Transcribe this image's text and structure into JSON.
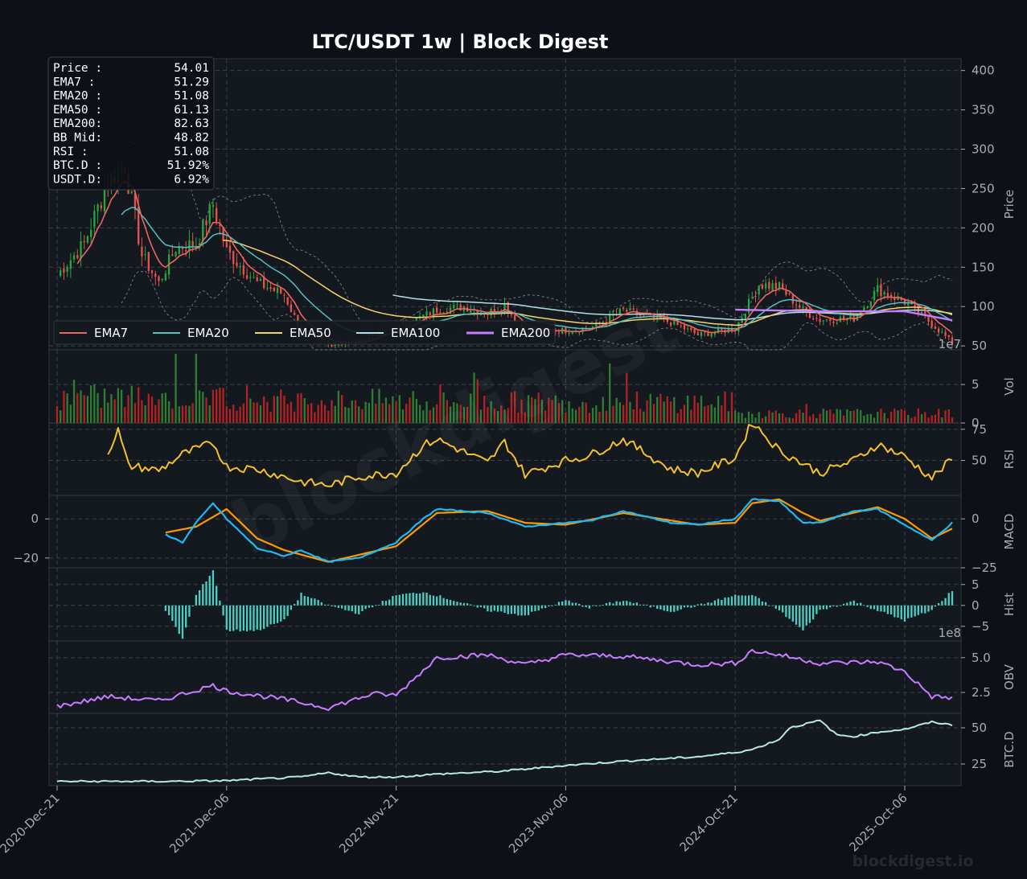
{
  "chart_data": {
    "type": "line",
    "title": "LTC/USDT  1w  |  Block Digest",
    "watermark": "blockdigest",
    "footer_watermark": "blockdigest.io",
    "x_ticks": [
      "2020-Dec-21",
      "2021-Dec-06",
      "2022-Nov-21",
      "2023-Nov-06",
      "2024-Oct-21",
      "2025-Oct-06"
    ],
    "x_range": [
      "2020-Dec-21",
      "2026-Jan-12"
    ],
    "info_box": [
      {
        "label": "Price :",
        "value": "54.01"
      },
      {
        "label": "EMA7  :",
        "value": "51.29"
      },
      {
        "label": "EMA20 :",
        "value": "51.08"
      },
      {
        "label": "EMA50 :",
        "value": "61.13"
      },
      {
        "label": "EMA200:",
        "value": "82.63"
      },
      {
        "label": "BB Mid:",
        "value": "48.82"
      },
      {
        "label": "RSI   :",
        "value": "51.08"
      },
      {
        "label": "BTC.D :",
        "value": "51.92%"
      },
      {
        "label": "USDT.D:",
        "value": "6.92%"
      }
    ],
    "legend": [
      {
        "name": "EMA7",
        "color": "#ef6461"
      },
      {
        "name": "EMA20",
        "color": "#53c1bd"
      },
      {
        "name": "EMA50",
        "color": "#f4d46b"
      },
      {
        "name": "EMA100",
        "color": "#b2dfe6"
      },
      {
        "name": "EMA200",
        "color": "#c77dff"
      }
    ],
    "panels": [
      {
        "id": "price",
        "ylabel": "Price",
        "ticks": [
          "400",
          "350",
          "300",
          "250",
          "200",
          "150",
          "100",
          "50"
        ],
        "ylim": [
          45,
          415
        ],
        "price_series": [
          {
            "date": "2020-Dec-21",
            "close": 140
          },
          {
            "date": "2021-Feb-15",
            "close": 180
          },
          {
            "date": "2021-Apr-05",
            "close": 260
          },
          {
            "date": "2021-May-10",
            "close": 280
          },
          {
            "date": "2021-Jun-14",
            "close": 165
          },
          {
            "date": "2021-Jul-19",
            "close": 130
          },
          {
            "date": "2021-Aug-23",
            "close": 175
          },
          {
            "date": "2021-Oct-04",
            "close": 180
          },
          {
            "date": "2021-Nov-08",
            "close": 230
          },
          {
            "date": "2021-Dec-06",
            "close": 170
          },
          {
            "date": "2022-Feb-07",
            "close": 130
          },
          {
            "date": "2022-Apr-04",
            "close": 115
          },
          {
            "date": "2022-May-09",
            "close": 68
          },
          {
            "date": "2022-Jul-04",
            "close": 52
          },
          {
            "date": "2022-Sep-05",
            "close": 55
          },
          {
            "date": "2022-Nov-21",
            "close": 72
          },
          {
            "date": "2023-Jan-16",
            "close": 88
          },
          {
            "date": "2023-Feb-13",
            "close": 96
          },
          {
            "date": "2023-Apr-10",
            "close": 100
          },
          {
            "date": "2023-May-29",
            "close": 92
          },
          {
            "date": "2023-Jul-03",
            "close": 102
          },
          {
            "date": "2023-Aug-14",
            "close": 68
          },
          {
            "date": "2023-Nov-06",
            "close": 70
          },
          {
            "date": "2023-Dec-25",
            "close": 72
          },
          {
            "date": "2024-Mar-04",
            "close": 95
          },
          {
            "date": "2024-Jun-10",
            "close": 80
          },
          {
            "date": "2024-Aug-05",
            "close": 64
          },
          {
            "date": "2024-Oct-21",
            "close": 72
          },
          {
            "date": "2024-Dec-09",
            "close": 128
          },
          {
            "date": "2025-Jan-20",
            "close": 125
          },
          {
            "date": "2025-Mar-10",
            "close": 95
          },
          {
            "date": "2025-Apr-14",
            "close": 83
          },
          {
            "date": "2025-Jun-23",
            "close": 85
          },
          {
            "date": "2025-Aug-11",
            "close": 122
          },
          {
            "date": "2025-Oct-06",
            "close": 106
          },
          {
            "date": "2025-Nov-03",
            "close": 92
          },
          {
            "date": "2025-Dec-01",
            "close": 78
          },
          {
            "date": "2026-Jan-12",
            "close": 54
          }
        ],
        "ema200": [
          {
            "date": "2024-Oct-21",
            "value": 96
          },
          {
            "date": "2025-Apr-14",
            "value": 94
          },
          {
            "date": "2025-Oct-06",
            "value": 94
          },
          {
            "date": "2026-Jan-12",
            "value": 82.63
          }
        ]
      },
      {
        "id": "vol",
        "ylabel": "Vol",
        "ticks": [
          "5",
          "0"
        ],
        "exponent": "1e7",
        "ylim": [
          0,
          9.5
        ]
      },
      {
        "id": "rsi",
        "ylabel": "RSI",
        "ticks": [
          "75",
          "50"
        ],
        "ylim": [
          22,
          80
        ],
        "series": [
          {
            "date": "2021-Apr-05",
            "value": 57
          },
          {
            "date": "2021-Apr-26",
            "value": 74
          },
          {
            "date": "2021-May-17",
            "value": 46
          },
          {
            "date": "2021-Jul-19",
            "value": 42
          },
          {
            "date": "2021-Sep-06",
            "value": 55
          },
          {
            "date": "2021-Nov-08",
            "value": 64
          },
          {
            "date": "2021-Dec-06",
            "value": 45
          },
          {
            "date": "2022-Feb-07",
            "value": 43
          },
          {
            "date": "2022-May-09",
            "value": 33
          },
          {
            "date": "2022-Jul-04",
            "value": 30
          },
          {
            "date": "2022-Sep-05",
            "value": 37
          },
          {
            "date": "2022-Nov-21",
            "value": 40
          },
          {
            "date": "2023-Jan-16",
            "value": 62
          },
          {
            "date": "2023-Feb-13",
            "value": 67
          },
          {
            "date": "2023-May-29",
            "value": 48
          },
          {
            "date": "2023-Jul-03",
            "value": 65
          },
          {
            "date": "2023-Aug-14",
            "value": 39
          },
          {
            "date": "2023-Nov-06",
            "value": 50
          },
          {
            "date": "2023-Dec-25",
            "value": 54
          },
          {
            "date": "2024-Mar-04",
            "value": 67
          },
          {
            "date": "2024-Jun-10",
            "value": 43
          },
          {
            "date": "2024-Aug-05",
            "value": 40
          },
          {
            "date": "2024-Oct-21",
            "value": 52
          },
          {
            "date": "2024-Nov-25",
            "value": 81
          },
          {
            "date": "2025-Jan-20",
            "value": 58
          },
          {
            "date": "2025-Apr-14",
            "value": 40
          },
          {
            "date": "2025-Jun-23",
            "value": 50
          },
          {
            "date": "2025-Aug-11",
            "value": 63
          },
          {
            "date": "2025-Oct-06",
            "value": 53
          },
          {
            "date": "2025-Dec-01",
            "value": 36
          },
          {
            "date": "2026-Jan-12",
            "value": 51.08
          }
        ]
      },
      {
        "id": "macd",
        "ylabel": "MACD",
        "ticks_left": [
          "0",
          "−20"
        ],
        "ticks_right": [
          "0",
          "−25"
        ],
        "ylim": [
          -25,
          12
        ],
        "macd": [
          {
            "date": "2021-Aug-02",
            "value": -8
          },
          {
            "date": "2021-Sep-06",
            "value": -12
          },
          {
            "date": "2021-Oct-04",
            "value": -2
          },
          {
            "date": "2021-Nov-08",
            "value": 8
          },
          {
            "date": "2021-Dec-06",
            "value": 0
          },
          {
            "date": "2022-Feb-07",
            "value": -15
          },
          {
            "date": "2022-Apr-04",
            "value": -19
          },
          {
            "date": "2022-May-09",
            "value": -16
          },
          {
            "date": "2022-Jul-04",
            "value": -22
          },
          {
            "date": "2022-Sep-05",
            "value": -20
          },
          {
            "date": "2022-Nov-21",
            "value": -12
          },
          {
            "date": "2023-Jan-16",
            "value": 0
          },
          {
            "date": "2023-Feb-13",
            "value": 5
          },
          {
            "date": "2023-May-29",
            "value": 3
          },
          {
            "date": "2023-Aug-14",
            "value": -4
          },
          {
            "date": "2023-Nov-06",
            "value": -2
          },
          {
            "date": "2023-Dec-25",
            "value": -1
          },
          {
            "date": "2024-Mar-04",
            "value": 4
          },
          {
            "date": "2024-Jun-10",
            "value": -2
          },
          {
            "date": "2024-Aug-05",
            "value": -3
          },
          {
            "date": "2024-Oct-21",
            "value": 0
          },
          {
            "date": "2024-Nov-25",
            "value": 10
          },
          {
            "date": "2025-Jan-20",
            "value": 9
          },
          {
            "date": "2025-Mar-10",
            "value": -2
          },
          {
            "date": "2025-Apr-14",
            "value": -2
          },
          {
            "date": "2025-Jun-23",
            "value": 4
          },
          {
            "date": "2025-Aug-11",
            "value": 5
          },
          {
            "date": "2025-Oct-06",
            "value": -3
          },
          {
            "date": "2025-Dec-01",
            "value": -11
          },
          {
            "date": "2026-Jan-12",
            "value": -2
          }
        ],
        "signal": [
          {
            "date": "2021-Aug-02",
            "value": -7
          },
          {
            "date": "2021-Oct-04",
            "value": -4
          },
          {
            "date": "2021-Dec-06",
            "value": 5
          },
          {
            "date": "2022-Feb-07",
            "value": -10
          },
          {
            "date": "2022-Apr-04",
            "value": -16
          },
          {
            "date": "2022-Jul-04",
            "value": -22
          },
          {
            "date": "2022-Nov-21",
            "value": -14
          },
          {
            "date": "2023-Feb-13",
            "value": 3
          },
          {
            "date": "2023-May-29",
            "value": 4
          },
          {
            "date": "2023-Aug-14",
            "value": -2
          },
          {
            "date": "2023-Nov-06",
            "value": -3
          },
          {
            "date": "2024-Mar-04",
            "value": 3
          },
          {
            "date": "2024-Aug-05",
            "value": -3
          },
          {
            "date": "2024-Oct-21",
            "value": -2
          },
          {
            "date": "2024-Nov-25",
            "value": 8
          },
          {
            "date": "2025-Jan-20",
            "value": 10
          },
          {
            "date": "2025-Mar-10",
            "value": 3
          },
          {
            "date": "2025-Apr-14",
            "value": -1
          },
          {
            "date": "2025-Aug-11",
            "value": 6
          },
          {
            "date": "2025-Oct-06",
            "value": 0
          },
          {
            "date": "2025-Dec-01",
            "value": -10
          },
          {
            "date": "2026-Jan-12",
            "value": -5
          }
        ]
      },
      {
        "id": "hist",
        "ylabel": "Hist",
        "ticks": [
          "5",
          "0",
          "−5"
        ],
        "ylim": [
          -8.5,
          9
        ]
      },
      {
        "id": "obv",
        "ylabel": "OBV",
        "ticks": [
          "5.0",
          "2.5"
        ],
        "exponent": "1e8",
        "ylim": [
          1,
          6.2
        ],
        "series": [
          {
            "date": "2020-Dec-21",
            "value": 1.5
          },
          {
            "date": "2021-Apr-05",
            "value": 2.2
          },
          {
            "date": "2021-Jul-19",
            "value": 1.9
          },
          {
            "date": "2021-Nov-08",
            "value": 3.0
          },
          {
            "date": "2021-Dec-06",
            "value": 2.6
          },
          {
            "date": "2022-Apr-04",
            "value": 2.0
          },
          {
            "date": "2022-Jul-04",
            "value": 1.4
          },
          {
            "date": "2022-Oct-03",
            "value": 2.4
          },
          {
            "date": "2022-Nov-21",
            "value": 2.3
          },
          {
            "date": "2023-Jan-16",
            "value": 4.1
          },
          {
            "date": "2023-Feb-13",
            "value": 5.0
          },
          {
            "date": "2023-May-29",
            "value": 5.2
          },
          {
            "date": "2023-Aug-14",
            "value": 4.5
          },
          {
            "date": "2023-Nov-06",
            "value": 5.2
          },
          {
            "date": "2024-Mar-04",
            "value": 5.1
          },
          {
            "date": "2024-Aug-05",
            "value": 4.5
          },
          {
            "date": "2024-Oct-21",
            "value": 4.6
          },
          {
            "date": "2024-Nov-25",
            "value": 5.5
          },
          {
            "date": "2025-Jan-20",
            "value": 5.2
          },
          {
            "date": "2025-Apr-14",
            "value": 4.6
          },
          {
            "date": "2025-Aug-11",
            "value": 4.7
          },
          {
            "date": "2025-Oct-06",
            "value": 4.0
          },
          {
            "date": "2025-Dec-01",
            "value": 2.2
          },
          {
            "date": "2026-Jan-12",
            "value": 2.1
          }
        ]
      },
      {
        "id": "btcd",
        "ylabel": "BTC.D",
        "ticks": [
          "50",
          "25"
        ],
        "ylim": [
          10,
          60
        ],
        "series": [
          {
            "date": "2020-Dec-21",
            "value": 13
          },
          {
            "date": "2021-Aug-02",
            "value": 13
          },
          {
            "date": "2021-Dec-06",
            "value": 13.5
          },
          {
            "date": "2022-May-09",
            "value": 16
          },
          {
            "date": "2022-Jul-04",
            "value": 19
          },
          {
            "date": "2022-Sep-05",
            "value": 16
          },
          {
            "date": "2022-Nov-21",
            "value": 16
          },
          {
            "date": "2023-Feb-13",
            "value": 18
          },
          {
            "date": "2023-Jun-26",
            "value": 20
          },
          {
            "date": "2023-Nov-06",
            "value": 24
          },
          {
            "date": "2024-Mar-04",
            "value": 27
          },
          {
            "date": "2024-Aug-05",
            "value": 30
          },
          {
            "date": "2024-Oct-21",
            "value": 33
          },
          {
            "date": "2024-Nov-25",
            "value": 35
          },
          {
            "date": "2025-Jan-20",
            "value": 42
          },
          {
            "date": "2025-Feb-10",
            "value": 50
          },
          {
            "date": "2025-Apr-14",
            "value": 55
          },
          {
            "date": "2025-May-19",
            "value": 45
          },
          {
            "date": "2025-Jun-23",
            "value": 44
          },
          {
            "date": "2025-Aug-11",
            "value": 47
          },
          {
            "date": "2025-Oct-06",
            "value": 49
          },
          {
            "date": "2025-Dec-01",
            "value": 54
          },
          {
            "date": "2026-Jan-12",
            "value": 51.92
          }
        ]
      }
    ]
  }
}
